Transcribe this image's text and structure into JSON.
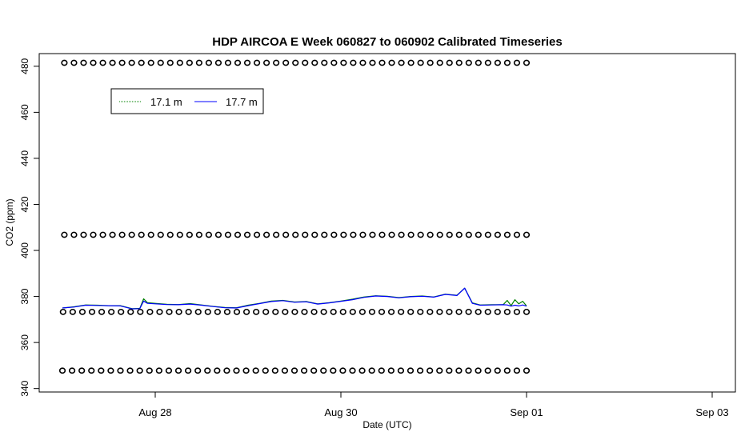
{
  "chart_data": {
    "type": "line",
    "title": "HDP AIRCOA E  Week 060827 to 060902  Calibrated Timeseries",
    "xlabel": "Date (UTC)",
    "ylabel": "CO2 (ppm)",
    "xlim": [
      "2006-08-26T18:00",
      "2006-09-03T06:00"
    ],
    "ylim": [
      338.5,
      485.5
    ],
    "x_ticks": [
      {
        "value": "2006-08-28",
        "label": "Aug 28"
      },
      {
        "value": "2006-08-30",
        "label": "Aug 30"
      },
      {
        "value": "2006-09-01",
        "label": "Sep 01"
      },
      {
        "value": "2006-09-03",
        "label": "Sep 03"
      }
    ],
    "y_ticks": [
      340,
      360,
      380,
      400,
      420,
      440,
      460,
      480
    ],
    "grid": false,
    "legend": {
      "placement": "top-left",
      "entries": [
        {
          "label": "17.1 m",
          "color": "#008000"
        },
        {
          "label": "17.7 m",
          "color": "#0000ff"
        }
      ]
    },
    "series": [
      {
        "name": "17.1 m",
        "color": "#008000",
        "x": [
          "2006-08-27T00:00",
          "2006-08-27T03:00",
          "2006-08-27T06:00",
          "2006-08-27T09:00",
          "2006-08-27T12:00",
          "2006-08-27T15:00",
          "2006-08-27T18:00",
          "2006-08-27T20:00",
          "2006-08-27T21:00",
          "2006-08-27T22:00",
          "2006-08-28T00:00",
          "2006-08-28T03:00",
          "2006-08-28T06:00",
          "2006-08-28T09:00",
          "2006-08-28T12:00",
          "2006-08-28T15:00",
          "2006-08-28T18:00",
          "2006-08-28T21:00",
          "2006-08-29T00:00",
          "2006-08-29T03:00",
          "2006-08-29T06:00",
          "2006-08-29T09:00",
          "2006-08-29T12:00",
          "2006-08-29T15:00",
          "2006-08-29T18:00",
          "2006-08-29T21:00",
          "2006-08-30T00:00",
          "2006-08-30T03:00",
          "2006-08-30T06:00",
          "2006-08-30T09:00",
          "2006-08-30T12:00",
          "2006-08-30T15:00",
          "2006-08-30T18:00",
          "2006-08-30T21:00",
          "2006-08-31T00:00",
          "2006-08-31T03:00",
          "2006-08-31T06:00",
          "2006-08-31T08:00",
          "2006-08-31T10:00",
          "2006-08-31T12:00",
          "2006-08-31T15:00",
          "2006-08-31T18:00",
          "2006-08-31T19:00",
          "2006-08-31T20:00",
          "2006-08-31T21:00",
          "2006-08-31T22:00",
          "2006-08-31T23:00",
          "2006-09-01T00:00"
        ],
        "y": [
          375.0,
          375.5,
          376.3,
          376.2,
          376.0,
          376.0,
          374.7,
          374.8,
          379.0,
          377.3,
          377.0,
          376.6,
          376.5,
          376.9,
          376.3,
          375.7,
          375.2,
          375.1,
          376.2,
          377.0,
          378.0,
          378.3,
          377.6,
          377.8,
          376.8,
          377.3,
          378.0,
          378.8,
          379.8,
          380.3,
          380.1,
          379.5,
          380.0,
          380.2,
          379.8,
          381.0,
          380.5,
          383.6,
          377.2,
          376.3,
          376.4,
          376.5,
          378.3,
          376.0,
          378.6,
          376.8,
          377.9,
          375.9
        ]
      },
      {
        "name": "17.7 m",
        "color": "#0000ff",
        "x": [
          "2006-08-27T00:00",
          "2006-08-27T03:00",
          "2006-08-27T06:00",
          "2006-08-27T09:00",
          "2006-08-27T12:00",
          "2006-08-27T15:00",
          "2006-08-27T18:00",
          "2006-08-27T20:00",
          "2006-08-27T21:00",
          "2006-08-27T22:00",
          "2006-08-28T00:00",
          "2006-08-28T03:00",
          "2006-08-28T06:00",
          "2006-08-28T09:00",
          "2006-08-28T12:00",
          "2006-08-28T15:00",
          "2006-08-28T18:00",
          "2006-08-28T21:00",
          "2006-08-29T00:00",
          "2006-08-29T03:00",
          "2006-08-29T06:00",
          "2006-08-29T09:00",
          "2006-08-29T12:00",
          "2006-08-29T15:00",
          "2006-08-29T18:00",
          "2006-08-29T21:00",
          "2006-08-30T00:00",
          "2006-08-30T03:00",
          "2006-08-30T06:00",
          "2006-08-30T09:00",
          "2006-08-30T12:00",
          "2006-08-30T15:00",
          "2006-08-30T18:00",
          "2006-08-30T21:00",
          "2006-08-31T00:00",
          "2006-08-31T03:00",
          "2006-08-31T06:00",
          "2006-08-31T08:00",
          "2006-08-31T10:00",
          "2006-08-31T12:00",
          "2006-08-31T15:00",
          "2006-08-31T18:00",
          "2006-08-31T19:00",
          "2006-08-31T20:00",
          "2006-08-31T21:00",
          "2006-08-31T22:00",
          "2006-08-31T23:00",
          "2006-09-01T00:00"
        ],
        "y": [
          375.0,
          375.4,
          376.2,
          376.1,
          376.0,
          375.9,
          374.6,
          374.7,
          378.0,
          377.0,
          376.8,
          376.5,
          376.4,
          376.7,
          376.2,
          375.6,
          375.1,
          375.0,
          376.0,
          376.9,
          377.8,
          378.2,
          377.5,
          377.7,
          376.7,
          377.2,
          377.9,
          378.6,
          379.6,
          380.2,
          380.0,
          379.4,
          379.9,
          380.1,
          379.7,
          380.9,
          380.4,
          383.6,
          377.0,
          376.2,
          376.3,
          376.4,
          376.3,
          375.8,
          376.2,
          375.9,
          376.3,
          375.8
        ]
      },
      {
        "name": "",
        "marker": "o",
        "x_start": "2006-08-27T00:30",
        "x_end": "2006-09-01T00:00",
        "count": 49,
        "y": 481.5
      },
      {
        "name": "",
        "marker": "o",
        "x_start": "2006-08-27T00:30",
        "x_end": "2006-09-01T00:00",
        "count": 49,
        "y": 406.8
      },
      {
        "name": "",
        "marker": "o",
        "x_start": "2006-08-27T00:10",
        "x_end": "2006-09-01T00:00",
        "count": 49,
        "y": 373.3
      },
      {
        "name": "",
        "marker": "o",
        "x_start": "2006-08-27T00:00",
        "x_end": "2006-09-01T00:00",
        "count": 49,
        "y": 347.8
      }
    ]
  }
}
